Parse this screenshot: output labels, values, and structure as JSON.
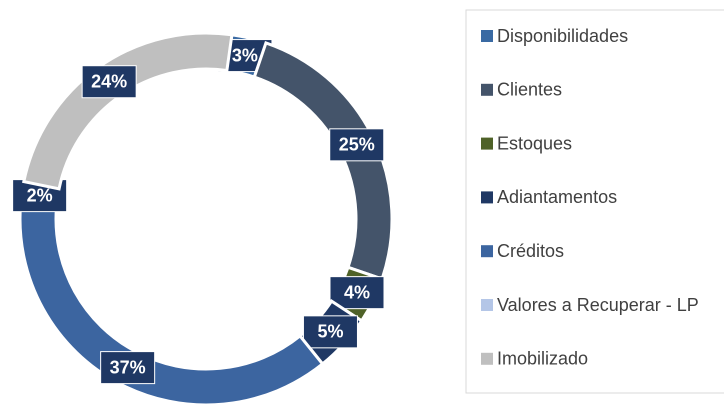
{
  "chart_data": {
    "type": "donut",
    "categories": [
      "Disponibilidades",
      "Clientes",
      "Estoques",
      "Adiantamentos",
      "Créditos",
      "Valores a Recuperar - LP",
      "Imobilizado"
    ],
    "values": [
      3,
      25,
      4,
      5,
      37,
      2,
      24
    ],
    "value_labels": [
      "3%",
      "25%",
      "4%",
      "5%",
      "37%",
      "2%",
      "24%"
    ],
    "colors": [
      "#3a6aa3",
      "#44546a",
      "#4f6228",
      "#1f3864",
      "#3c65a0",
      "#b4c6e7",
      "#bfbfbf"
    ],
    "legend": "right"
  }
}
